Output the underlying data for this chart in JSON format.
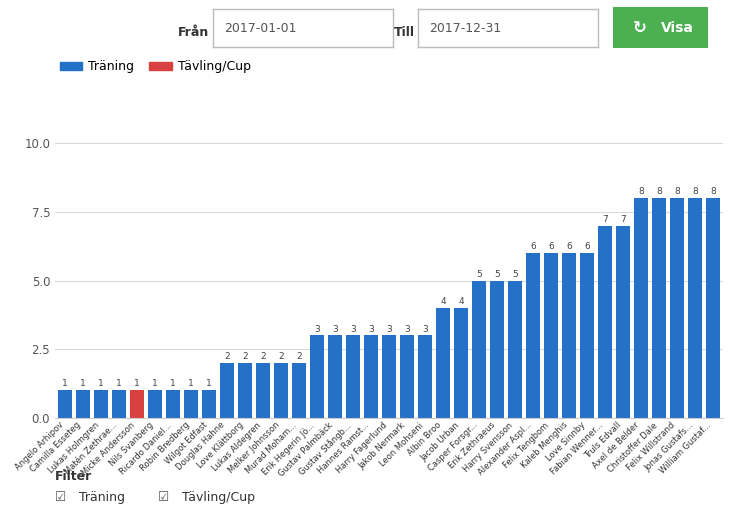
{
  "names": [
    "Angelo Arhipov",
    "Camilla Esseteg",
    "Lukas Holmgren",
    "Matén Zethrae...",
    "Micke Andersson",
    "Nils Svanberg",
    "Ricardo Daniel...",
    "Robin Bredberg",
    "Wilgot Edfast",
    "Douglas Hahne",
    "Love Klättborg",
    "Lukas Aldegren",
    "Melker Johnsson",
    "Murad Moham...",
    "Erik Hegerin Jö...",
    "Gustav Palmbäck",
    "Gustav Stångb...",
    "Hannes Ramst...",
    "Harry Fagerlund",
    "Jakob Nermark",
    "Leon Mohseni",
    "Albin Broo",
    "Jacob Urban",
    "Casper Forsgr...",
    "Erik Zethraeus",
    "Harry Svensson",
    "Alexander Aspl...",
    "Felix Tengbom",
    "Kaleb Menghis",
    "Love Sinnby",
    "Fabian Wenner...",
    "Truls Edvall",
    "Axel de Belder",
    "Christoffer Dale",
    "Felix Willstrand",
    "Jonas Gustafs...",
    "William Gustaf..."
  ],
  "values": [
    1,
    1,
    1,
    1,
    1,
    1,
    1,
    1,
    1,
    2,
    2,
    2,
    2,
    2,
    3,
    3,
    3,
    3,
    3,
    3,
    3,
    4,
    4,
    5,
    5,
    5,
    6,
    6,
    6,
    6,
    7,
    7,
    8,
    8,
    8,
    8,
    8
  ],
  "bar_colors": [
    "#2372C8",
    "#2372C8",
    "#2372C8",
    "#2372C8",
    "#D94040",
    "#2372C8",
    "#2372C8",
    "#2372C8",
    "#2372C8",
    "#2372C8",
    "#2372C8",
    "#2372C8",
    "#2372C8",
    "#2372C8",
    "#2372C8",
    "#2372C8",
    "#2372C8",
    "#2372C8",
    "#2372C8",
    "#2372C8",
    "#2372C8",
    "#2372C8",
    "#2372C8",
    "#2372C8",
    "#2372C8",
    "#2372C8",
    "#2372C8",
    "#2372C8",
    "#2372C8",
    "#2372C8",
    "#2372C8",
    "#2372C8",
    "#2372C8",
    "#2372C8",
    "#2372C8",
    "#2372C8",
    "#2372C8"
  ],
  "ylim": [
    0,
    10.5
  ],
  "yticks": [
    0.0,
    2.5,
    5.0,
    7.5,
    10.0
  ],
  "background_color": "#ffffff",
  "legend_labels": [
    "Träning",
    "Tävling/Cup"
  ],
  "legend_colors": [
    "#2372C8",
    "#D94040"
  ],
  "filter_text": "Filter",
  "filter_items": [
    "Träning",
    "Tävling/Cup"
  ],
  "visa_button": "Visa",
  "from_date": "2017-01-01",
  "till_date": "2017-12-31",
  "from_label": "Från",
  "till_label": "Till"
}
